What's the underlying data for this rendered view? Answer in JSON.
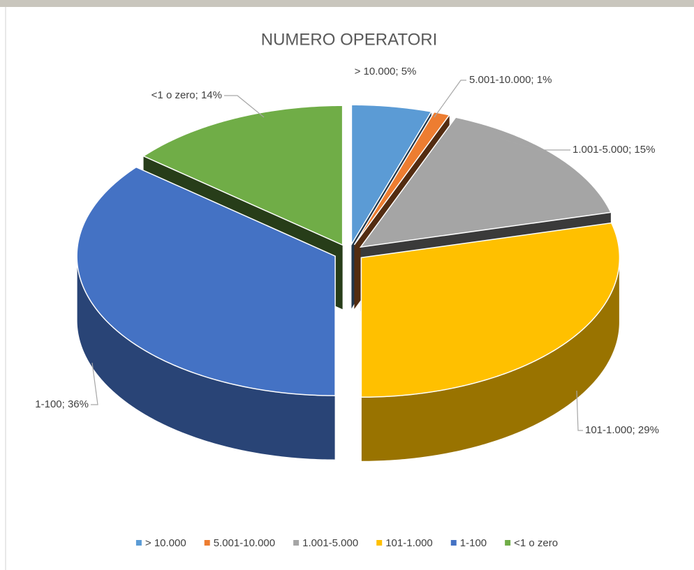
{
  "chart_data": {
    "type": "pie3d",
    "title": "NUMERO OPERATORI",
    "categories": [
      "> 10.000",
      "5.001-10.000",
      "1.001-5.000",
      "101-1.000",
      "1-100",
      "<1 o zero"
    ],
    "values": [
      5,
      1,
      15,
      29,
      36,
      14
    ],
    "value_labels": [
      "> 10.000; 5%",
      "5.001-10.000; 1%",
      "1.001-5.000; 15%",
      "101-1.000; 29%",
      "1-100; 36%",
      "<1 o zero; 14%"
    ],
    "colors": [
      "#5b9bd5",
      "#ed7d31",
      "#a5a5a5",
      "#ffc000",
      "#4472c4",
      "#70ad47"
    ],
    "legend": "bottom"
  }
}
